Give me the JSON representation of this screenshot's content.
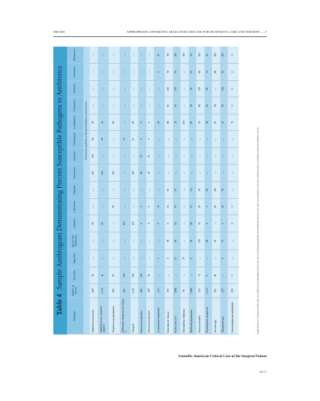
{
  "header": {
    "left": "INF DIS",
    "right": "APPROPRIATE ANTIBIOTIC SELECTION AND USE FOR INTENSIVE CARE UNIT PATIENT — 5"
  },
  "table": {
    "number": "Table 4",
    "caption": "Sample Antibiogram Demonstrating Percent Susceptible Pathogens to Antibiotics",
    "columns": [
      "Pathogen",
      "Number of Strains",
      "Penicillin",
      "Ampicillin",
      "Piperacillin-Tazobactam",
      "Cefazolin",
      "Ceftriaxone",
      "Cefepime",
      "Vancomycin",
      "Linezolid",
      "Clindamycin",
      "Levofloxacin",
      "Gentamicin",
      "Amikacin",
      "Aztreonam",
      "Meropenem"
    ],
    "subheader": "Percent Susceptibility at Minimal Inhibitory Concentration",
    "rows": [
      [
        "Staphylococcus aureus",
        "3,667",
        "18",
        "—",
        "—",
        "68",
        "—",
        "—",
        "100",
        "100",
        "68",
        "78",
        "—",
        "—",
        "—",
        "—"
      ],
      [
        "Staphylococcus, coagulase negative",
        "1,770",
        "16",
        "—",
        "—",
        "69",
        "—",
        "—",
        "100",
        "—",
        "59",
        "56",
        "—",
        "—",
        "—",
        "—"
      ],
      [
        "Streptococcus pneumoniae",
        "226",
        "97",
        "—",
        "—",
        "—",
        "99",
        "—",
        "100",
        "—",
        "—",
        "98",
        "—",
        "—",
        "—",
        "—"
      ],
      [
        "β-Hemolytic Streptococcus Group A",
        "162",
        "100",
        "—",
        "—",
        "100",
        "—",
        "—",
        "—",
        "—",
        "79",
        "—",
        "—",
        "—",
        "—",
        "—"
      ],
      [
        "Group B",
        "1,247",
        "100",
        "—",
        "—",
        "100",
        "—",
        "—",
        "100",
        "—",
        "67",
        "99",
        "—",
        "—",
        "—",
        "—"
      ],
      [
        "Enterococcus faecalis",
        "186",
        "100",
        "—",
        "—",
        "0",
        "0",
        "—",
        "96",
        "97",
        "0",
        "77",
        "—",
        "—",
        "—",
        "—"
      ],
      [
        "Enterococcus faecium",
        "108",
        "19",
        "—",
        "—",
        "0",
        "0",
        "—",
        "28",
        "95",
        "0",
        "4",
        "—",
        "—",
        "—",
        "—"
      ],
      [
        "Acinetobacter baumannii",
        "133",
        "—",
        "0",
        "—",
        "0",
        "31",
        "—",
        "—",
        "—",
        "—",
        "82",
        "—",
        "—",
        "0",
        "87"
      ],
      [
        "Enterobacter cloacae",
        "305",
        "—",
        "0",
        "78",
        "0",
        "74",
        "93",
        "—",
        "—",
        "—",
        "88",
        "93",
        "100",
        "78",
        "99"
      ],
      [
        "Escherichia coli",
        "7,898",
        "—",
        "51",
        "96",
        "82",
        "97",
        "95",
        "—",
        "—",
        "—",
        "78",
        "90",
        "100",
        "96",
        "100"
      ],
      [
        "Haemophilus influenzae",
        "96",
        "—",
        "79",
        "—",
        "—",
        "—",
        "—",
        "—",
        "—",
        "—",
        "100",
        "—",
        "—",
        "—",
        "100"
      ],
      [
        "Klebsiella pneumoniae",
        "1,860",
        "—",
        "0",
        "96",
        "88",
        "93",
        "94",
        "—",
        "—",
        "—",
        "90",
        "98",
        "99",
        "95",
        "99"
      ],
      [
        "Proteus mirabilis",
        "754",
        "74",
        "—",
        "100",
        "55",
        "99",
        "99",
        "—",
        "—",
        "—",
        "81",
        "88",
        "100",
        "88",
        "100"
      ],
      [
        "Pseudomonas aeruginosa",
        "1,333",
        "0",
        "—",
        "86",
        "0",
        "0",
        "89",
        "—",
        "—",
        "—",
        "68",
        "84",
        "89",
        "74",
        "83"
      ],
      [
        "Serratia spp.",
        "150",
        "80",
        "—",
        "95",
        "—",
        "99",
        "100",
        "—",
        "—",
        "—",
        "90",
        "98",
        "—",
        "88",
        "100"
      ],
      [
        "Morganella spp.",
        "178",
        "—",
        "0",
        "97",
        "0",
        "94",
        "99",
        "—",
        "—",
        "—",
        "90",
        "98",
        "100",
        "99",
        "100"
      ],
      [
        "Stenotrophomonas maltophilia",
        "278",
        "0",
        "—",
        "—",
        "0",
        "0",
        "—",
        "—",
        "—",
        "—",
        "75",
        "0",
        "0",
        "0",
        "0"
      ]
    ],
    "footnote": "Antibiograms are hospital specific, may vary, different susceptibilities between the general hospital population and individual intensive care units, and should be used when making decisions regarding empirical antibiotic courses."
  },
  "footer": {
    "title": "Scientific American Critical Care of the Surgical Patient",
    "page": "06/17"
  }
}
